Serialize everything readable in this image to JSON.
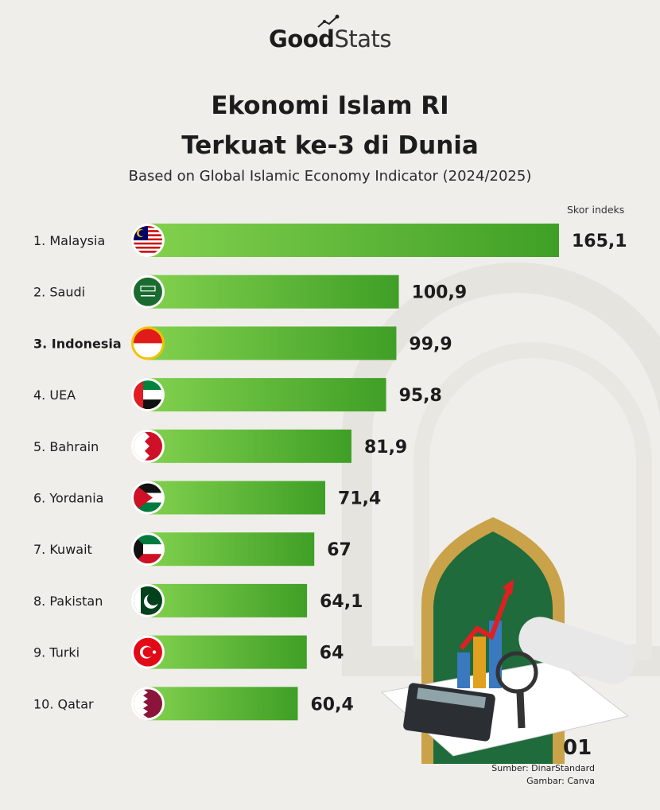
{
  "brand": {
    "good": "Good",
    "stats": "Stats"
  },
  "title_line1": "Ekonomi Islam RI",
  "title_line2": "Terkuat ke-3 di Dunia",
  "subtitle": "Based on Global Islamic Economy Indicator (2024/2025)",
  "page_number": "01",
  "source": "Sumber: DinarStandard",
  "image_credit": "Gambar: Canva",
  "colors": {
    "bar": "#4aa82c",
    "bar_light": "#7fcf4a",
    "highlight_ring": "#f2c200"
  },
  "chart_data": {
    "type": "bar",
    "orientation": "horizontal",
    "value_label": "Skor indeks",
    "highlight": "Indonesia",
    "items": [
      {
        "rank": "1.",
        "name": "Malaysia",
        "value": 165.1,
        "label": "165,1",
        "flag": "malaysia-flag"
      },
      {
        "rank": "2.",
        "name": "Saudi",
        "value": 100.9,
        "label": "100,9",
        "flag": "saudi-flag"
      },
      {
        "rank": "3.",
        "name": "Indonesia",
        "value": 99.9,
        "label": "99,9",
        "flag": "indonesia-flag"
      },
      {
        "rank": "4.",
        "name": "UEA",
        "value": 95.8,
        "label": "95,8",
        "flag": "uae-flag"
      },
      {
        "rank": "5.",
        "name": "Bahrain",
        "value": 81.9,
        "label": "81,9",
        "flag": "bahrain-flag"
      },
      {
        "rank": "6.",
        "name": "Yordania",
        "value": 71.4,
        "label": "71,4",
        "flag": "jordan-flag"
      },
      {
        "rank": "7.",
        "name": "Kuwait",
        "value": 67,
        "label": "67",
        "flag": "kuwait-flag"
      },
      {
        "rank": "8.",
        "name": "Pakistan",
        "value": 64.1,
        "label": "64,1",
        "flag": "pakistan-flag"
      },
      {
        "rank": "9.",
        "name": "Turki",
        "value": 64,
        "label": "64",
        "flag": "turkey-flag"
      },
      {
        "rank": "10.",
        "name": "Qatar",
        "value": 60.4,
        "label": "60,4",
        "flag": "qatar-flag"
      }
    ]
  }
}
